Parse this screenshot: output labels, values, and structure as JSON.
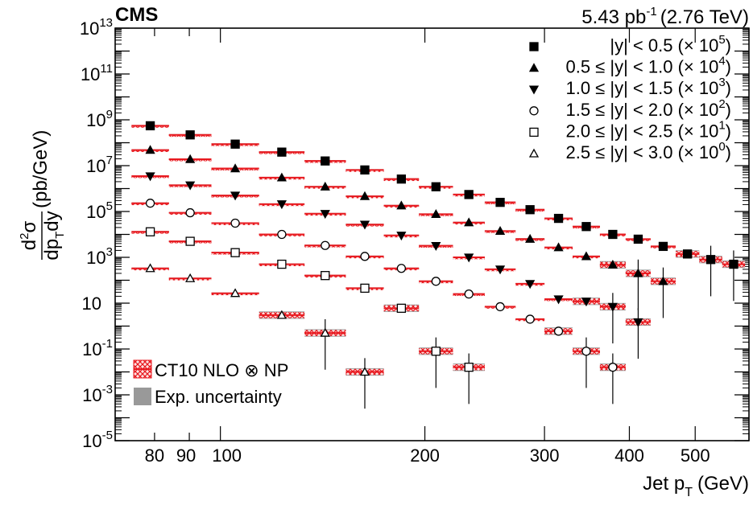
{
  "header": {
    "experiment": "CMS",
    "lumi": "5.43 pb",
    "lumi_exp": "-1",
    "energy": "(2.76 TeV)"
  },
  "axes": {
    "x_main": "Jet p",
    "x_sub": "T",
    "x_unit": "(GeV)",
    "x_ticks": [
      "80",
      "90",
      "100",
      "200",
      "300",
      "400",
      "500"
    ],
    "y_ticks": [
      {
        "base": "10",
        "exp": "13"
      },
      {
        "base": "10",
        "exp": "11"
      },
      {
        "base": "10",
        "exp": "9"
      },
      {
        "base": "10",
        "exp": "7"
      },
      {
        "base": "10",
        "exp": "5"
      },
      {
        "base": "10",
        "exp": "3"
      },
      {
        "base": "10",
        "exp": ""
      },
      {
        "base": "10",
        "exp": "-1"
      },
      {
        "base": "10",
        "exp": "-3"
      },
      {
        "base": "10",
        "exp": "-5"
      }
    ],
    "y_label": {
      "num_d": "d",
      "num_exp": "2",
      "num_sigma": "σ",
      "den_d": "dp",
      "den_sub": "T",
      "den_dy": "dy",
      "unit": "(pb/GeV)"
    }
  },
  "legend_series": [
    {
      "pre": "|y| < 0.5 (× 10",
      "exp": "5",
      "post": ")"
    },
    {
      "pre": "0.5 ≤ |y| < 1.0 (× 10",
      "exp": "4",
      "post": ")"
    },
    {
      "pre": "1.0 ≤ |y| < 1.5 (× 10",
      "exp": "3",
      "post": ")"
    },
    {
      "pre": "1.5 ≤ |y| < 2.0 (× 10",
      "exp": "2",
      "post": ")"
    },
    {
      "pre": "2.0 ≤ |y| < 2.5 (× 10",
      "exp": "1",
      "post": ")"
    },
    {
      "pre": "2.5 ≤ |y| < 3.0 (× 10",
      "exp": "0",
      "post": ")"
    }
  ],
  "legend_bands": [
    {
      "label": "CT10 NLO ⊗ NP"
    },
    {
      "label": "Exp. uncertainty"
    }
  ],
  "colors": {
    "theory": "#e8191f",
    "experimental": "#999999",
    "data": "#000000"
  },
  "chart_data": {
    "type": "scatter",
    "x_scale": "log",
    "y_scale": "log",
    "xlim": [
      70,
      600
    ],
    "ylim": [
      1e-05,
      10000000000000.0
    ],
    "xlabel": "Jet pT (GeV)",
    "ylabel": "d2σ/dpTdy (pb/GeV)",
    "legend_position": "top-right",
    "grid": false,
    "bins": [
      74,
      84,
      97,
      114,
      133,
      153,
      174,
      196,
      220,
      245,
      272,
      300,
      330,
      362,
      395,
      430,
      468,
      507,
      548,
      592
    ],
    "series": [
      {
        "name": "|y| < 0.5 (× 10^5)",
        "marker": "square-filled",
        "values": [
          550000000.0,
          220000000.0,
          87000000.0,
          39000000.0,
          16000000.0,
          6500000.0,
          2600000.0,
          1200000.0,
          550000.0,
          250000.0,
          120000.0,
          50000.0,
          22000.0,
          10000.0,
          6200.0,
          3000.0,
          1400.0,
          800.0,
          500.0
        ]
      },
      {
        "name": "0.5 ≤ |y| < 1.0 (× 10^4)",
        "marker": "triangle-up-filled",
        "values": [
          48000000.0,
          19000000.0,
          7500000.0,
          3000000.0,
          1200000.0,
          460000.0,
          180000.0,
          76000.0,
          33000.0,
          14000.0,
          6300.0,
          2700.0,
          1100.0,
          470.0,
          200.0,
          90.0
        ]
      },
      {
        "name": "1.0 ≤ |y| < 1.5 (× 10^3)",
        "marker": "triangle-down-filled",
        "values": [
          3500000.0,
          1400000.0,
          500000.0,
          210000.0,
          80000.0,
          27000.0,
          9000.0,
          3200.0,
          1000.0,
          300.0,
          70.0,
          15.0,
          12.0,
          7.0,
          1.5
        ]
      },
      {
        "name": "1.5 ≤ |y| < 2.0 (× 10^2)",
        "marker": "circle-open",
        "values": [
          230000.0,
          88000.0,
          31000.0,
          10000.0,
          3300.0,
          1100.0,
          330.0,
          90.0,
          25.0,
          7.0,
          2.0,
          0.6,
          0.08,
          0.016
        ]
      },
      {
        "name": "2.0 ≤ |y| < 2.5 (× 10^1)",
        "marker": "square-open",
        "values": [
          13000.0,
          5000.0,
          1600.0,
          500.0,
          160.0,
          45.0,
          6.0,
          0.08,
          0.016
        ]
      },
      {
        "name": "2.5 ≤ |y| < 3.0 (× 10^0)",
        "marker": "triangle-up-open",
        "values": [
          330.0,
          120.0,
          27.0,
          3.0,
          0.5,
          0.01
        ]
      }
    ]
  }
}
